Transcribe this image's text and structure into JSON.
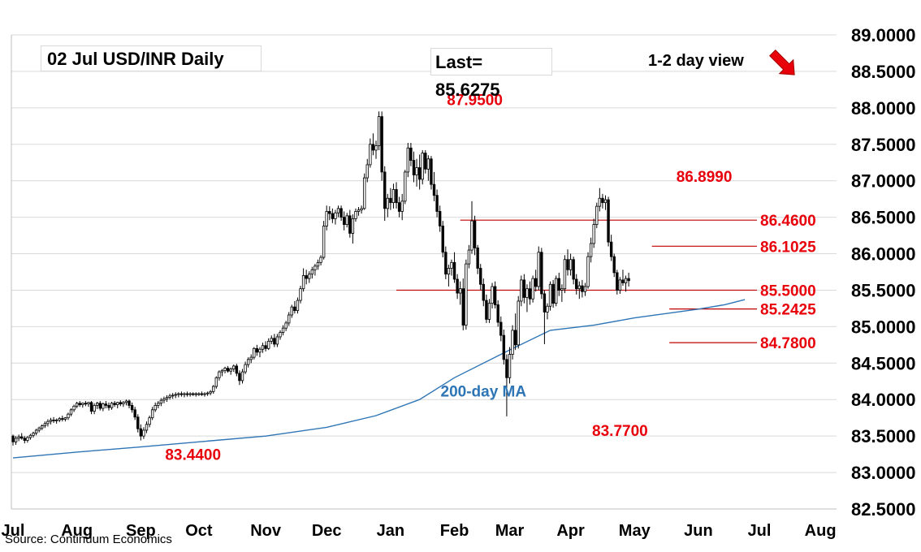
{
  "header": {
    "title": "02 Jul  USD/INR  Daily",
    "last": "Last= 85.6275",
    "view": "1-2 day view",
    "view_direction": "down"
  },
  "source": "Source: Continuum Economics",
  "colors": {
    "up": "#ffffff",
    "down": "#000000",
    "wick": "#000000",
    "ma": "#2e75b6",
    "level_line": "#c00000",
    "level_text": "#e8000b",
    "arrow": "#e8000b",
    "grid": "#d9d9d9"
  },
  "chart_data": {
    "type": "candlestick",
    "y_axis": {
      "min": 82.5,
      "max": 89.0,
      "ticks": [
        "89.0000",
        "88.5000",
        "88.0000",
        "87.5000",
        "87.0000",
        "86.5000",
        "86.0000",
        "85.5000",
        "85.0000",
        "84.5000",
        "84.0000",
        "83.5000",
        "83.0000",
        "82.5000"
      ]
    },
    "x_axis": {
      "months": [
        "Jul",
        "Aug",
        "Sep",
        "Oct",
        "Nov",
        "Dec",
        "Jan",
        "Feb",
        "Mar",
        "Apr",
        "May",
        "Jun",
        "Jul",
        "Aug"
      ],
      "month_start_index": [
        0,
        22,
        44,
        64,
        87,
        108,
        130,
        152,
        171,
        192,
        214,
        236,
        257,
        278
      ]
    },
    "grid": true,
    "levels": [
      {
        "value": 86.46,
        "label": "86.4600",
        "from_index": 154
      },
      {
        "value": 86.1025,
        "label": "86.1025",
        "from_index": 220
      },
      {
        "value": 85.5,
        "label": "85.5000",
        "from_index": 132
      },
      {
        "value": 85.2425,
        "label": "85.2425",
        "from_index": 226
      },
      {
        "value": 84.78,
        "label": "84.7800",
        "from_index": 226
      }
    ],
    "annotations": [
      {
        "text": "87.9500",
        "index": 159,
        "value": 87.95,
        "place": "above"
      },
      {
        "text": "86.8990",
        "index": 238,
        "value": 86.899,
        "place": "above"
      },
      {
        "text": "83.4400",
        "index": 62,
        "value": 83.44,
        "place": "below"
      },
      {
        "text": "83.7700",
        "index": 209,
        "value": 83.77,
        "place": "below"
      },
      {
        "text": "200-day MA",
        "index": 162,
        "value": 84.12,
        "place": "on"
      }
    ],
    "ma_label": "200-day MA",
    "ma200": {
      "index": [
        0,
        22,
        44,
        64,
        87,
        108,
        125,
        140,
        152,
        171,
        185,
        200,
        214,
        225,
        236,
        245,
        252
      ],
      "value": [
        83.2,
        83.28,
        83.35,
        83.42,
        83.5,
        83.62,
        83.78,
        84.0,
        84.3,
        84.68,
        84.95,
        85.02,
        85.12,
        85.18,
        85.24,
        85.3,
        85.37
      ]
    },
    "candles_ohlc": [
      [
        83.5,
        83.52,
        83.37,
        83.42
      ],
      [
        83.42,
        83.5,
        83.38,
        83.47
      ],
      [
        83.47,
        83.52,
        83.43,
        83.49
      ],
      [
        83.49,
        83.54,
        83.45,
        83.47
      ],
      [
        83.47,
        83.5,
        83.4,
        83.44
      ],
      [
        83.44,
        83.5,
        83.41,
        83.48
      ],
      [
        83.48,
        83.53,
        83.45,
        83.51
      ],
      [
        83.51,
        83.56,
        83.48,
        83.54
      ],
      [
        83.54,
        83.6,
        83.51,
        83.58
      ],
      [
        83.58,
        83.63,
        83.55,
        83.61
      ],
      [
        83.61,
        83.66,
        83.58,
        83.64
      ],
      [
        83.64,
        83.7,
        83.61,
        83.67
      ],
      [
        83.67,
        83.73,
        83.63,
        83.7
      ],
      [
        83.7,
        83.75,
        83.66,
        83.72
      ],
      [
        83.72,
        83.76,
        83.68,
        83.71
      ],
      [
        83.71,
        83.74,
        83.67,
        83.72
      ],
      [
        83.72,
        83.76,
        83.69,
        83.74
      ],
      [
        83.74,
        83.78,
        83.7,
        83.73
      ],
      [
        83.73,
        83.76,
        83.7,
        83.75
      ],
      [
        83.75,
        83.82,
        83.72,
        83.8
      ],
      [
        83.8,
        83.88,
        83.77,
        83.86
      ],
      [
        83.86,
        83.93,
        83.83,
        83.91
      ],
      [
        83.91,
        83.97,
        83.88,
        83.95
      ],
      [
        83.95,
        83.98,
        83.9,
        83.93
      ],
      [
        83.93,
        83.96,
        83.89,
        83.95
      ],
      [
        83.95,
        83.98,
        83.91,
        83.94
      ],
      [
        83.94,
        83.97,
        83.9,
        83.96
      ],
      [
        83.96,
        83.98,
        83.8,
        83.84
      ],
      [
        83.84,
        83.95,
        83.8,
        83.92
      ],
      [
        83.92,
        83.97,
        83.87,
        83.95
      ],
      [
        83.95,
        83.98,
        83.85,
        83.88
      ],
      [
        83.88,
        83.96,
        83.84,
        83.94
      ],
      [
        83.94,
        83.98,
        83.88,
        83.92
      ],
      [
        83.92,
        83.96,
        83.85,
        83.89
      ],
      [
        83.89,
        83.97,
        83.86,
        83.95
      ],
      [
        83.95,
        83.98,
        83.9,
        83.93
      ],
      [
        83.93,
        83.97,
        83.88,
        83.96
      ],
      [
        83.96,
        83.99,
        83.91,
        83.94
      ],
      [
        83.94,
        83.98,
        83.9,
        83.96
      ],
      [
        83.96,
        84.0,
        83.92,
        83.98
      ],
      [
        83.98,
        84.0,
        83.88,
        83.92
      ],
      [
        83.92,
        83.96,
        83.82,
        83.86
      ],
      [
        83.86,
        83.9,
        83.72,
        83.76
      ],
      [
        83.76,
        83.8,
        83.55,
        83.6
      ],
      [
        83.6,
        83.66,
        83.44,
        83.5
      ],
      [
        83.5,
        83.62,
        83.46,
        83.58
      ],
      [
        83.58,
        83.7,
        83.54,
        83.66
      ],
      [
        83.66,
        83.78,
        83.62,
        83.75
      ],
      [
        83.75,
        83.9,
        83.72,
        83.86
      ],
      [
        83.86,
        83.96,
        83.83,
        83.92
      ],
      [
        83.92,
        83.98,
        83.88,
        83.95
      ],
      [
        83.95,
        84.02,
        83.91,
        83.99
      ],
      [
        83.99,
        84.04,
        83.95,
        84.01
      ],
      [
        84.01,
        84.06,
        83.97,
        84.03
      ],
      [
        84.03,
        84.08,
        84.0,
        84.05
      ],
      [
        84.05,
        84.09,
        84.01,
        84.06
      ],
      [
        84.06,
        84.1,
        84.02,
        84.07
      ],
      [
        84.07,
        84.1,
        84.03,
        84.08
      ],
      [
        84.08,
        84.11,
        84.04,
        84.07
      ],
      [
        84.07,
        84.1,
        84.03,
        84.08
      ],
      [
        84.08,
        84.11,
        84.04,
        84.07
      ],
      [
        84.07,
        84.1,
        84.04,
        84.08
      ],
      [
        84.08,
        84.1,
        84.05,
        84.07
      ],
      [
        84.07,
        84.1,
        84.04,
        84.08
      ],
      [
        84.08,
        84.1,
        84.05,
        84.08
      ],
      [
        84.08,
        84.11,
        84.05,
        84.07
      ],
      [
        84.07,
        84.1,
        84.04,
        84.08
      ],
      [
        84.08,
        84.11,
        84.05,
        84.09
      ],
      [
        84.09,
        84.13,
        84.06,
        84.11
      ],
      [
        84.11,
        84.2,
        84.08,
        84.18
      ],
      [
        84.18,
        84.32,
        84.15,
        84.3
      ],
      [
        84.3,
        84.4,
        84.26,
        84.38
      ],
      [
        84.38,
        84.42,
        84.32,
        84.4
      ],
      [
        84.4,
        84.45,
        84.36,
        84.43
      ],
      [
        84.43,
        84.46,
        84.37,
        84.39
      ],
      [
        84.39,
        84.44,
        84.34,
        84.42
      ],
      [
        84.42,
        84.48,
        84.38,
        84.46
      ],
      [
        84.46,
        84.49,
        84.32,
        84.36
      ],
      [
        84.36,
        84.4,
        84.2,
        84.26
      ],
      [
        84.26,
        84.42,
        84.22,
        84.38
      ],
      [
        84.38,
        84.52,
        84.35,
        84.48
      ],
      [
        84.48,
        84.58,
        84.44,
        84.55
      ],
      [
        84.55,
        84.62,
        84.5,
        84.58
      ],
      [
        84.58,
        84.72,
        84.55,
        84.7
      ],
      [
        84.7,
        84.75,
        84.6,
        84.65
      ],
      [
        84.65,
        84.72,
        84.58,
        84.69
      ],
      [
        84.69,
        84.78,
        84.64,
        84.74
      ],
      [
        84.74,
        84.8,
        84.66,
        84.7
      ],
      [
        84.7,
        84.84,
        84.68,
        84.8
      ],
      [
        84.8,
        84.88,
        84.76,
        84.84
      ],
      [
        84.84,
        84.9,
        84.72,
        84.76
      ],
      [
        84.76,
        84.9,
        84.72,
        84.86
      ],
      [
        84.86,
        84.95,
        84.82,
        84.92
      ],
      [
        84.92,
        85.02,
        84.88,
        84.98
      ],
      [
        84.98,
        85.08,
        84.94,
        85.05
      ],
      [
        85.05,
        85.2,
        85.01,
        85.16
      ],
      [
        85.16,
        85.3,
        85.12,
        85.27
      ],
      [
        85.27,
        85.35,
        85.18,
        85.22
      ],
      [
        85.22,
        85.4,
        85.18,
        85.36
      ],
      [
        85.36,
        85.56,
        85.32,
        85.52
      ],
      [
        85.52,
        85.8,
        85.48,
        85.7
      ],
      [
        85.7,
        85.78,
        85.58,
        85.66
      ],
      [
        85.66,
        85.76,
        85.6,
        85.72
      ],
      [
        85.72,
        85.82,
        85.66,
        85.78
      ],
      [
        85.78,
        85.86,
        85.7,
        85.83
      ],
      [
        85.83,
        85.92,
        85.78,
        85.88
      ],
      [
        85.88,
        85.98,
        85.84,
        85.95
      ],
      [
        85.95,
        86.45,
        85.92,
        86.38
      ],
      [
        86.38,
        86.66,
        86.32,
        86.58
      ],
      [
        86.58,
        86.65,
        86.46,
        86.55
      ],
      [
        86.55,
        86.62,
        86.42,
        86.48
      ],
      [
        86.48,
        86.6,
        86.4,
        86.56
      ],
      [
        86.56,
        86.66,
        86.5,
        86.62
      ],
      [
        86.62,
        86.66,
        86.45,
        86.5
      ],
      [
        86.5,
        86.58,
        86.32,
        86.4
      ],
      [
        86.4,
        86.56,
        86.36,
        86.52
      ],
      [
        86.52,
        86.6,
        86.22,
        86.28
      ],
      [
        86.28,
        86.54,
        86.14,
        86.48
      ],
      [
        86.48,
        86.62,
        86.44,
        86.58
      ],
      [
        86.58,
        86.64,
        86.52,
        86.6
      ],
      [
        86.6,
        86.66,
        86.55,
        86.62
      ],
      [
        86.62,
        87.1,
        86.6,
        87.04
      ],
      [
        87.04,
        87.3,
        86.98,
        87.22
      ],
      [
        87.22,
        87.58,
        87.18,
        87.5
      ],
      [
        87.5,
        87.65,
        87.35,
        87.42
      ],
      [
        87.42,
        87.55,
        87.3,
        87.48
      ],
      [
        87.48,
        87.95,
        87.42,
        87.88
      ],
      [
        87.88,
        87.95,
        87.0,
        87.12
      ],
      [
        87.12,
        87.2,
        86.45,
        86.62
      ],
      [
        86.62,
        86.82,
        86.5,
        86.76
      ],
      [
        86.76,
        86.9,
        86.6,
        86.7
      ],
      [
        86.7,
        86.96,
        86.62,
        86.88
      ],
      [
        86.88,
        86.98,
        86.62,
        86.7
      ],
      [
        86.7,
        86.78,
        86.5,
        86.58
      ],
      [
        86.58,
        86.82,
        86.46,
        86.72
      ],
      [
        86.72,
        87.15,
        86.68,
        87.12
      ],
      [
        87.12,
        87.52,
        87.05,
        87.45
      ],
      [
        87.45,
        87.52,
        87.2,
        87.28
      ],
      [
        87.28,
        87.4,
        86.98,
        87.08
      ],
      [
        87.08,
        87.3,
        86.92,
        87.18
      ],
      [
        87.18,
        87.36,
        86.88,
        87.02
      ],
      [
        87.02,
        87.42,
        86.95,
        87.38
      ],
      [
        87.38,
        87.42,
        87.1,
        87.16
      ],
      [
        87.16,
        87.35,
        87.0,
        87.3
      ],
      [
        87.3,
        87.34,
        86.88,
        86.95
      ],
      [
        86.95,
        87.12,
        86.72,
        86.8
      ],
      [
        86.8,
        86.88,
        86.5,
        86.58
      ],
      [
        86.58,
        86.66,
        86.3,
        86.38
      ],
      [
        86.38,
        86.45,
        85.95,
        86.02
      ],
      [
        86.02,
        86.1,
        85.65,
        85.72
      ],
      [
        85.72,
        85.85,
        85.55,
        85.8
      ],
      [
        85.8,
        85.92,
        85.7,
        85.88
      ],
      [
        85.88,
        86.02,
        85.6,
        85.65
      ],
      [
        85.65,
        85.72,
        85.38,
        85.46
      ],
      [
        85.46,
        85.62,
        85.3,
        85.52
      ],
      [
        85.52,
        85.66,
        84.95,
        85.02
      ],
      [
        85.02,
        85.92,
        84.96,
        85.86
      ],
      [
        85.86,
        86.12,
        85.8,
        86.05
      ],
      [
        86.05,
        86.72,
        86.0,
        86.45
      ],
      [
        86.45,
        86.52,
        85.98,
        86.08
      ],
      [
        86.08,
        86.12,
        85.72,
        85.8
      ],
      [
        85.8,
        85.86,
        85.5,
        85.58
      ],
      [
        85.58,
        85.66,
        85.28,
        85.36
      ],
      [
        85.36,
        85.44,
        85.05,
        85.1
      ],
      [
        85.1,
        85.38,
        85.05,
        85.32
      ],
      [
        85.32,
        85.6,
        85.25,
        85.55
      ],
      [
        85.55,
        85.62,
        85.25,
        85.3
      ],
      [
        85.3,
        85.36,
        85.0,
        85.06
      ],
      [
        85.06,
        85.14,
        84.8,
        84.88
      ],
      [
        84.88,
        84.96,
        84.48,
        84.55
      ],
      [
        84.55,
        84.62,
        83.77,
        84.3
      ],
      [
        84.3,
        84.72,
        84.22,
        84.62
      ],
      [
        84.62,
        85.02,
        84.55,
        84.95
      ],
      [
        84.95,
        85.18,
        84.68,
        84.75
      ],
      [
        84.75,
        85.42,
        84.7,
        85.35
      ],
      [
        85.35,
        85.7,
        85.28,
        85.64
      ],
      [
        85.64,
        85.72,
        85.32,
        85.4
      ],
      [
        85.4,
        85.58,
        85.2,
        85.52
      ],
      [
        85.52,
        85.62,
        85.3,
        85.38
      ],
      [
        85.38,
        85.7,
        85.33,
        85.66
      ],
      [
        85.66,
        85.78,
        85.48,
        85.55
      ],
      [
        85.55,
        86.1,
        85.5,
        86.02
      ],
      [
        86.02,
        86.08,
        85.38,
        85.45
      ],
      [
        85.45,
        85.5,
        84.76,
        85.2
      ],
      [
        85.2,
        85.32,
        85.1,
        85.28
      ],
      [
        85.28,
        85.62,
        85.22,
        85.58
      ],
      [
        85.58,
        85.64,
        85.26,
        85.32
      ],
      [
        85.32,
        85.7,
        85.28,
        85.66
      ],
      [
        85.66,
        85.74,
        85.42,
        85.5
      ],
      [
        85.5,
        85.58,
        85.34,
        85.52
      ],
      [
        85.52,
        85.98,
        85.46,
        85.92
      ],
      [
        85.92,
        86.06,
        85.7,
        85.78
      ],
      [
        85.78,
        86.0,
        85.7,
        85.92
      ],
      [
        85.92,
        85.96,
        85.58,
        85.65
      ],
      [
        85.65,
        85.72,
        85.44,
        85.52
      ],
      [
        85.52,
        85.62,
        85.38,
        85.56
      ],
      [
        85.56,
        85.64,
        85.4,
        85.48
      ],
      [
        85.48,
        85.6,
        85.42,
        85.55
      ],
      [
        85.55,
        86.02,
        85.52,
        85.96
      ],
      [
        85.96,
        86.22,
        85.88,
        86.14
      ],
      [
        86.14,
        86.48,
        86.08,
        86.4
      ],
      [
        86.4,
        86.7,
        86.35,
        86.65
      ],
      [
        86.65,
        86.9,
        86.58,
        86.76
      ],
      [
        86.76,
        86.82,
        86.62,
        86.7
      ],
      [
        86.7,
        86.8,
        86.6,
        86.74
      ],
      [
        86.74,
        86.78,
        86.1,
        86.16
      ],
      [
        86.16,
        86.26,
        85.9,
        85.96
      ],
      [
        85.96,
        86.0,
        85.68,
        85.74
      ],
      [
        85.74,
        85.78,
        85.44,
        85.5
      ],
      [
        85.5,
        85.68,
        85.45,
        85.64
      ],
      [
        85.64,
        85.78,
        85.56,
        85.6
      ],
      [
        85.6,
        85.7,
        85.48,
        85.66
      ],
      [
        85.66,
        85.74,
        85.55,
        85.63
      ]
    ]
  }
}
